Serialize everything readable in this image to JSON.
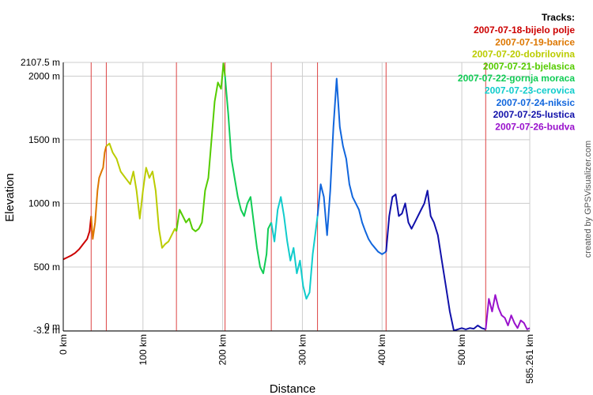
{
  "chart_data": {
    "type": "line",
    "xlabel": "Distance",
    "ylabel": "Elevation",
    "x_unit": "km",
    "y_unit": "m",
    "xlim": [
      0,
      585.261
    ],
    "ylim": [
      -3.2,
      2107.5
    ],
    "x_ticks": [
      "0 km",
      "100 km",
      "200 km",
      "300 km",
      "400 km",
      "500 km",
      "585.261 km"
    ],
    "y_ticks": [
      "-3.2 m",
      "0 m",
      "500 m",
      "1000 m",
      "1500 m",
      "2000 m",
      "2107.5 m"
    ],
    "x_tick_values": [
      0,
      100,
      200,
      300,
      400,
      500,
      585.261
    ],
    "y_tick_values": [
      -3.2,
      0,
      500,
      1000,
      1500,
      2000,
      2107.5
    ],
    "grid": true,
    "legend_title": "Tracks:",
    "legend_position": "top-right",
    "track_boundaries_km": [
      35,
      54,
      142,
      203,
      261,
      319,
      405,
      530
    ],
    "series": [
      {
        "name": "2007-07-18-bijelo polje",
        "color": "#cc0000",
        "x": [
          0,
          5,
          10,
          15,
          20,
          25,
          30,
          33,
          35
        ],
        "y": [
          560,
          575,
          590,
          610,
          640,
          680,
          720,
          780,
          900
        ]
      },
      {
        "name": "2007-07-19-barice",
        "color": "#dd7700",
        "x": [
          35,
          37,
          40,
          43,
          45,
          48,
          50,
          52,
          54
        ],
        "y": [
          900,
          720,
          850,
          1100,
          1200,
          1250,
          1280,
          1400,
          1450
        ]
      },
      {
        "name": "2007-07-20-dobrilovina",
        "color": "#bbcc00",
        "x": [
          54,
          58,
          62,
          67,
          72,
          78,
          84,
          88,
          92,
          96,
          100,
          104,
          108,
          112,
          116,
          120,
          124,
          128,
          132,
          136,
          140,
          142
        ],
        "y": [
          1450,
          1470,
          1400,
          1350,
          1250,
          1200,
          1150,
          1250,
          1100,
          880,
          1100,
          1280,
          1200,
          1250,
          1100,
          800,
          650,
          680,
          700,
          750,
          800,
          780
        ]
      },
      {
        "name": "2007-07-21-bjelasica",
        "color": "#55cc00",
        "x": [
          142,
          146,
          150,
          154,
          158,
          162,
          166,
          170,
          174,
          178,
          182,
          186,
          190,
          194,
          198,
          201,
          203
        ],
        "y": [
          780,
          950,
          900,
          850,
          880,
          800,
          780,
          800,
          850,
          1100,
          1200,
          1500,
          1800,
          1950,
          1900,
          2100,
          2000
        ]
      },
      {
        "name": "2007-07-22-gornja moraca",
        "color": "#11cc55",
        "x": [
          203,
          207,
          211,
          215,
          219,
          223,
          227,
          231,
          235,
          239,
          243,
          247,
          251,
          255,
          257,
          261
        ],
        "y": [
          2000,
          1700,
          1350,
          1200,
          1050,
          950,
          900,
          1000,
          1050,
          850,
          650,
          500,
          450,
          600,
          800,
          850
        ]
      },
      {
        "name": "2007-07-23-cerovica",
        "color": "#11cccc",
        "x": [
          261,
          265,
          269,
          273,
          277,
          281,
          285,
          289,
          293,
          297,
          301,
          305,
          309,
          313,
          317,
          319
        ],
        "y": [
          850,
          700,
          950,
          1050,
          900,
          700,
          550,
          650,
          450,
          550,
          350,
          250,
          300,
          600,
          800,
          900
        ]
      },
      {
        "name": "2007-07-24-niksic",
        "color": "#1166dd",
        "x": [
          319,
          323,
          327,
          331,
          335,
          339,
          343,
          347,
          351,
          355,
          359,
          363,
          367,
          371,
          375,
          379,
          383,
          387,
          391,
          395,
          400,
          405
        ],
        "y": [
          900,
          1150,
          1050,
          750,
          1100,
          1600,
          1980,
          1600,
          1450,
          1350,
          1150,
          1050,
          1000,
          950,
          850,
          780,
          720,
          680,
          650,
          620,
          600,
          620
        ]
      },
      {
        "name": "2007-07-25-lustica",
        "color": "#1111aa",
        "x": [
          405,
          409,
          413,
          417,
          421,
          425,
          429,
          433,
          437,
          441,
          445,
          449,
          453,
          457,
          461,
          465,
          470,
          475,
          480,
          485,
          490,
          495,
          500,
          505,
          510,
          515,
          520,
          525,
          530
        ],
        "y": [
          620,
          900,
          1050,
          1070,
          900,
          920,
          1000,
          850,
          800,
          850,
          900,
          950,
          1000,
          1100,
          900,
          850,
          750,
          550,
          350,
          150,
          0,
          10,
          20,
          10,
          20,
          15,
          40,
          20,
          10
        ]
      },
      {
        "name": "2007-07-26-budva",
        "color": "#9911cc",
        "x": [
          530,
          534,
          538,
          542,
          546,
          550,
          554,
          558,
          562,
          566,
          570,
          574,
          578,
          582,
          585.261
        ],
        "y": [
          10,
          250,
          150,
          280,
          180,
          120,
          100,
          40,
          120,
          60,
          20,
          80,
          60,
          10,
          20
        ]
      }
    ]
  },
  "credit": "created by GPSVisualizer.com"
}
